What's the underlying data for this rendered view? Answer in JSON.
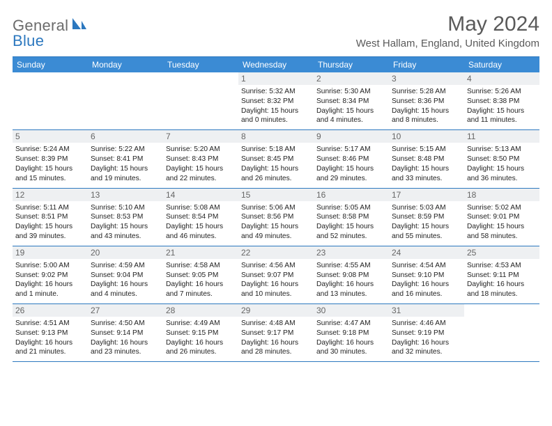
{
  "brand": {
    "part1": "General",
    "part2": "Blue"
  },
  "title": "May 2024",
  "location": "West Hallam, England, United Kingdom",
  "colors": {
    "header_bg": "#3b8bd4",
    "border": "#2c78bf",
    "daynum_bg": "#eef0f2",
    "text": "#222222",
    "muted": "#5a5a5a",
    "logo_gray": "#6b6b6b",
    "logo_blue": "#2c78bf"
  },
  "day_names": [
    "Sunday",
    "Monday",
    "Tuesday",
    "Wednesday",
    "Thursday",
    "Friday",
    "Saturday"
  ],
  "weeks": [
    [
      {
        "blank": true
      },
      {
        "blank": true
      },
      {
        "blank": true
      },
      {
        "n": "1",
        "sunrise": "5:32 AM",
        "sunset": "8:32 PM",
        "daylight": "15 hours and 0 minutes."
      },
      {
        "n": "2",
        "sunrise": "5:30 AM",
        "sunset": "8:34 PM",
        "daylight": "15 hours and 4 minutes."
      },
      {
        "n": "3",
        "sunrise": "5:28 AM",
        "sunset": "8:36 PM",
        "daylight": "15 hours and 8 minutes."
      },
      {
        "n": "4",
        "sunrise": "5:26 AM",
        "sunset": "8:38 PM",
        "daylight": "15 hours and 11 minutes."
      }
    ],
    [
      {
        "n": "5",
        "sunrise": "5:24 AM",
        "sunset": "8:39 PM",
        "daylight": "15 hours and 15 minutes."
      },
      {
        "n": "6",
        "sunrise": "5:22 AM",
        "sunset": "8:41 PM",
        "daylight": "15 hours and 19 minutes."
      },
      {
        "n": "7",
        "sunrise": "5:20 AM",
        "sunset": "8:43 PM",
        "daylight": "15 hours and 22 minutes."
      },
      {
        "n": "8",
        "sunrise": "5:18 AM",
        "sunset": "8:45 PM",
        "daylight": "15 hours and 26 minutes."
      },
      {
        "n": "9",
        "sunrise": "5:17 AM",
        "sunset": "8:46 PM",
        "daylight": "15 hours and 29 minutes."
      },
      {
        "n": "10",
        "sunrise": "5:15 AM",
        "sunset": "8:48 PM",
        "daylight": "15 hours and 33 minutes."
      },
      {
        "n": "11",
        "sunrise": "5:13 AM",
        "sunset": "8:50 PM",
        "daylight": "15 hours and 36 minutes."
      }
    ],
    [
      {
        "n": "12",
        "sunrise": "5:11 AM",
        "sunset": "8:51 PM",
        "daylight": "15 hours and 39 minutes."
      },
      {
        "n": "13",
        "sunrise": "5:10 AM",
        "sunset": "8:53 PM",
        "daylight": "15 hours and 43 minutes."
      },
      {
        "n": "14",
        "sunrise": "5:08 AM",
        "sunset": "8:54 PM",
        "daylight": "15 hours and 46 minutes."
      },
      {
        "n": "15",
        "sunrise": "5:06 AM",
        "sunset": "8:56 PM",
        "daylight": "15 hours and 49 minutes."
      },
      {
        "n": "16",
        "sunrise": "5:05 AM",
        "sunset": "8:58 PM",
        "daylight": "15 hours and 52 minutes."
      },
      {
        "n": "17",
        "sunrise": "5:03 AM",
        "sunset": "8:59 PM",
        "daylight": "15 hours and 55 minutes."
      },
      {
        "n": "18",
        "sunrise": "5:02 AM",
        "sunset": "9:01 PM",
        "daylight": "15 hours and 58 minutes."
      }
    ],
    [
      {
        "n": "19",
        "sunrise": "5:00 AM",
        "sunset": "9:02 PM",
        "daylight": "16 hours and 1 minute."
      },
      {
        "n": "20",
        "sunrise": "4:59 AM",
        "sunset": "9:04 PM",
        "daylight": "16 hours and 4 minutes."
      },
      {
        "n": "21",
        "sunrise": "4:58 AM",
        "sunset": "9:05 PM",
        "daylight": "16 hours and 7 minutes."
      },
      {
        "n": "22",
        "sunrise": "4:56 AM",
        "sunset": "9:07 PM",
        "daylight": "16 hours and 10 minutes."
      },
      {
        "n": "23",
        "sunrise": "4:55 AM",
        "sunset": "9:08 PM",
        "daylight": "16 hours and 13 minutes."
      },
      {
        "n": "24",
        "sunrise": "4:54 AM",
        "sunset": "9:10 PM",
        "daylight": "16 hours and 16 minutes."
      },
      {
        "n": "25",
        "sunrise": "4:53 AM",
        "sunset": "9:11 PM",
        "daylight": "16 hours and 18 minutes."
      }
    ],
    [
      {
        "n": "26",
        "sunrise": "4:51 AM",
        "sunset": "9:13 PM",
        "daylight": "16 hours and 21 minutes."
      },
      {
        "n": "27",
        "sunrise": "4:50 AM",
        "sunset": "9:14 PM",
        "daylight": "16 hours and 23 minutes."
      },
      {
        "n": "28",
        "sunrise": "4:49 AM",
        "sunset": "9:15 PM",
        "daylight": "16 hours and 26 minutes."
      },
      {
        "n": "29",
        "sunrise": "4:48 AM",
        "sunset": "9:17 PM",
        "daylight": "16 hours and 28 minutes."
      },
      {
        "n": "30",
        "sunrise": "4:47 AM",
        "sunset": "9:18 PM",
        "daylight": "16 hours and 30 minutes."
      },
      {
        "n": "31",
        "sunrise": "4:46 AM",
        "sunset": "9:19 PM",
        "daylight": "16 hours and 32 minutes."
      },
      {
        "blank": true
      }
    ]
  ],
  "labels": {
    "sunrise": "Sunrise: ",
    "sunset": "Sunset: ",
    "daylight": "Daylight: "
  }
}
